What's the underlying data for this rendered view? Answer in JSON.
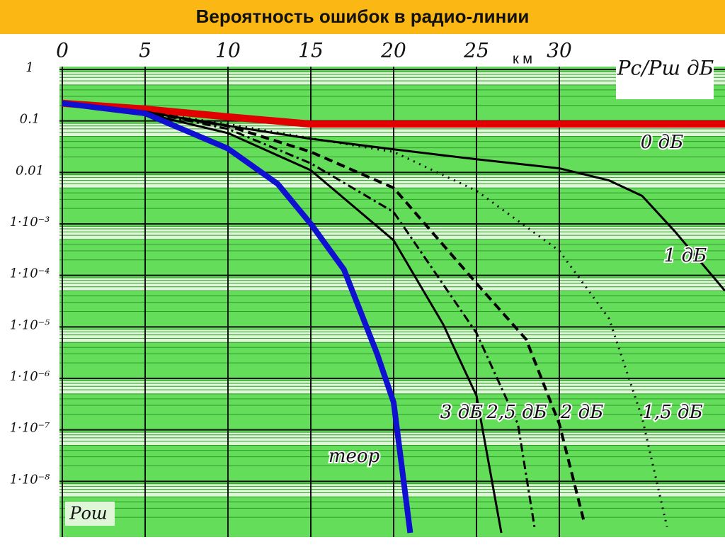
{
  "chart_data": {
    "type": "line",
    "title": "Вероятность ошибок в радио-линии",
    "x_label": "Pс/Pш дБ",
    "x_unit": "к м",
    "y_label": "Рош",
    "log_y": true,
    "grid": true,
    "xlim": [
      0,
      40
    ],
    "xticks": [
      0,
      5,
      10,
      15,
      20,
      25,
      30
    ],
    "ylim": [
      1e-09,
      1
    ],
    "yticks": [
      1,
      0.1,
      0.01,
      {
        "value": 0.001,
        "label": "1·10⁻³"
      },
      {
        "value": 0.0001,
        "label": "1·10⁻⁴"
      },
      {
        "value": 1e-05,
        "label": "1·10⁻⁵"
      },
      {
        "value": 1e-06,
        "label": "1·10⁻⁶"
      },
      {
        "value": 1e-07,
        "label": "1·10⁻⁷"
      },
      {
        "value": 1e-08,
        "label": "1·10⁻⁸"
      }
    ],
    "series": [
      {
        "name": "0 дБ",
        "color": "#e00000",
        "dash": "solid",
        "width": 10,
        "x": [
          0,
          5,
          10,
          15,
          20,
          30,
          40
        ],
        "values": [
          0.22,
          0.17,
          0.12,
          0.087,
          0.087,
          0.087,
          0.087
        ]
      },
      {
        "name": "1 дБ",
        "color": "#000000",
        "dash": "solid",
        "width": 3,
        "x": [
          0,
          5,
          10,
          15,
          20,
          25,
          30,
          33,
          35,
          37,
          40
        ],
        "values": [
          0.22,
          0.15,
          0.08,
          0.045,
          0.028,
          0.018,
          0.012,
          0.007,
          0.0035,
          0.0007,
          5e-05
        ]
      },
      {
        "name": "1,5 дБ",
        "color": "#000000",
        "dash": "dot",
        "width": 3,
        "x": [
          0,
          5,
          10,
          15,
          20,
          25,
          30,
          33,
          35,
          36.5
        ],
        "values": [
          0.22,
          0.15,
          0.087,
          0.046,
          0.025,
          0.0044,
          0.0003,
          1.45e-05,
          1.7e-07,
          1.3e-09
        ]
      },
      {
        "name": "2 дБ",
        "color": "#000000",
        "dash": "dash",
        "width": 4,
        "x": [
          0,
          5,
          10,
          15,
          20,
          25,
          28,
          30,
          31.5
        ],
        "values": [
          0.22,
          0.15,
          0.08,
          0.025,
          0.005,
          7e-05,
          5.7e-06,
          1.3e-07,
          1.6e-09
        ]
      },
      {
        "name": "2,5 дБ",
        "color": "#000000",
        "dash": "dashdot",
        "width": 3,
        "x": [
          0,
          5,
          10,
          15,
          20,
          25,
          27.5,
          28.5
        ],
        "values": [
          0.22,
          0.15,
          0.07,
          0.015,
          0.0017,
          7.6e-06,
          1.3e-07,
          1.3e-09
        ]
      },
      {
        "name": "3 дБ",
        "color": "#000000",
        "dash": "solid",
        "width": 3,
        "x": [
          0,
          5,
          10,
          15,
          20,
          23,
          25,
          26.5
        ],
        "values": [
          0.22,
          0.14,
          0.058,
          0.011,
          0.00048,
          1.1e-05,
          4.6e-07,
          1e-09
        ]
      },
      {
        "name": "теор",
        "color": "#1010d0",
        "dash": "solid",
        "width": 8,
        "x": [
          0,
          5,
          10,
          13,
          15,
          17,
          19,
          20,
          21
        ],
        "values": [
          0.22,
          0.14,
          0.029,
          0.006,
          0.001,
          0.00013,
          3e-06,
          3.4e-07,
          1e-09
        ]
      }
    ]
  }
}
